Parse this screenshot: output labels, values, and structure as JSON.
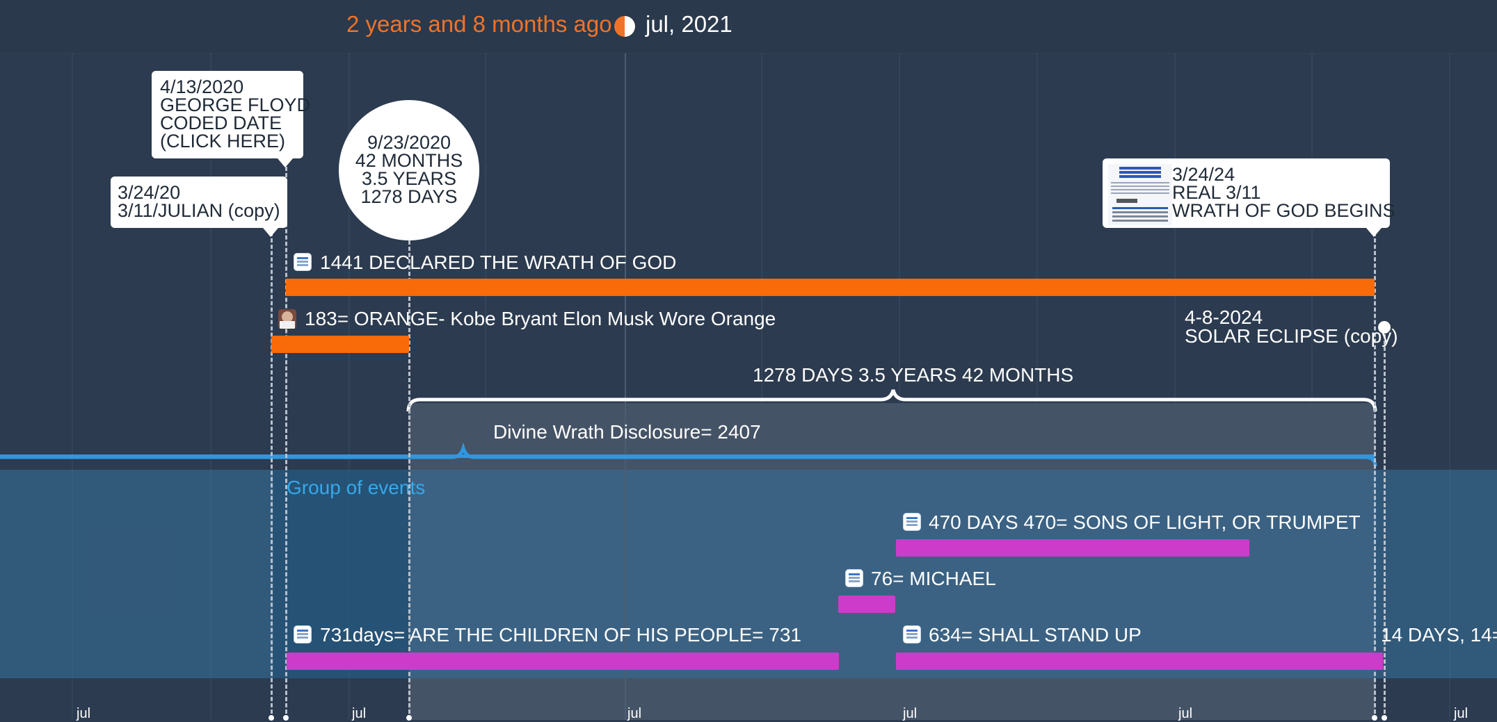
{
  "header": {
    "relative_time": "2 years and 8 months ago",
    "current_date": "jul, 2021"
  },
  "axis": {
    "labels": [
      "jul",
      "jul",
      "jul",
      "jul",
      "jul",
      "jul"
    ]
  },
  "callouts": {
    "george_floyd": {
      "lines": [
        "4/13/2020",
        "GEORGE FLOYD",
        "CODED DATE",
        "(CLICK HERE)"
      ]
    },
    "julian": {
      "lines": [
        "3/24/20",
        "3/11/JULIAN (copy)"
      ]
    },
    "circle": {
      "lines": [
        "9/23/2020",
        "42 MONTHS",
        "3.5 YEARS",
        "1278 DAYS"
      ]
    },
    "wrath_begins": {
      "lines": [
        "3/24/24",
        "REAL 3/11",
        "WRATH OF GOD BEGINS"
      ]
    }
  },
  "events": {
    "wrath_declared": {
      "label": "1441 DECLARED THE WRATH OF GOD"
    },
    "orange": {
      "label": "183= ORANGE- Kobe Bryant Elon Musk Wore Orange"
    },
    "eclipse": {
      "lines": [
        "4-8-2024",
        "SOLAR ECLIPSE (copy)"
      ]
    },
    "sons_of_light": {
      "label": "470 DAYS 470= SONS OF LIGHT, OR TRUMPET"
    },
    "michael": {
      "label": "76= MICHAEL"
    },
    "children": {
      "label": "731days= ARE THE CHILDREN OF HIS PEOPLE= 731"
    },
    "stand_up": {
      "label": "634= SHALL STAND UP"
    },
    "fourteen_days": {
      "label": "14 DAYS, 14="
    }
  },
  "braces": {
    "span_1278": {
      "label": "1278 DAYS 3.5 YEARS 42 MONTHS"
    },
    "divine_wrath": {
      "label": "Divine Wrath Disclosure= 2407"
    }
  },
  "group": {
    "label": "Group of events"
  },
  "colors": {
    "orange": "#f96a08",
    "magenta": "#cc3bc9",
    "group_blue": "#2f97df",
    "background": "#2c3b4f"
  }
}
